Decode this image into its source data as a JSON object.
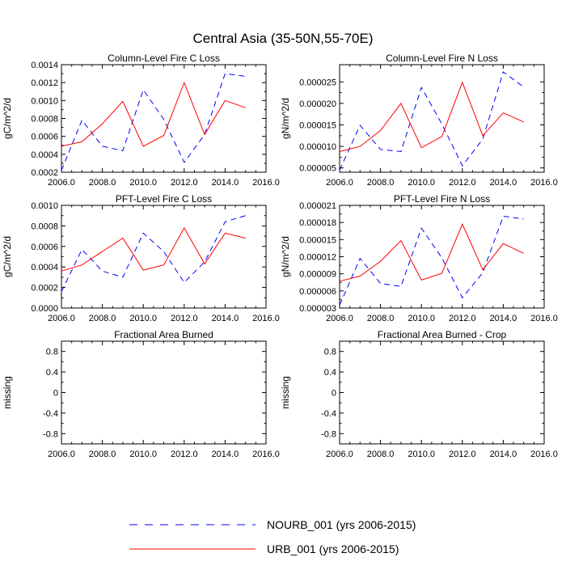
{
  "title": "Central Asia (35-50N,55-70E)",
  "series_styles": {
    "NOURB_001": {
      "color": "#0000ff",
      "dash": "dashed"
    },
    "URB_001": {
      "color": "#ff0000",
      "dash": "solid"
    }
  },
  "legend": {
    "placement": "bottom-center",
    "entries": [
      {
        "series": "NOURB_001",
        "label": "NOURB_001 (yrs 2006-2015)"
      },
      {
        "series": "URB_001",
        "label": "URB_001 (yrs 2006-2015)"
      }
    ]
  },
  "chart_data": [
    {
      "type": "line",
      "title": "Column-Level Fire C Loss",
      "xlabel": "",
      "ylabel": "gC/m^2/d",
      "xlim": [
        2006,
        2016
      ],
      "ylim": [
        0.0002,
        0.0014
      ],
      "xticks": [
        2006,
        2008,
        2010,
        2012,
        2014,
        2016
      ],
      "xtick_labels": [
        "2006.0",
        "2008.0",
        "2010.0",
        "2012.0",
        "2014.0",
        "2016.0"
      ],
      "yticks": [
        0.0002,
        0.0004,
        0.0006,
        0.0008,
        0.001,
        0.0012,
        0.0014
      ],
      "ytick_labels": [
        "0.0002",
        "0.0004",
        "0.0006",
        "0.0008",
        "0.0010",
        "0.0012",
        "0.0014"
      ],
      "x": [
        2006,
        2007,
        2008,
        2009,
        2010,
        2011,
        2012,
        2013,
        2014,
        2015
      ],
      "series": [
        {
          "name": "NOURB_001",
          "values": [
            0.00022,
            0.00078,
            0.00049,
            0.00044,
            0.00112,
            0.00079,
            0.00031,
            0.00062,
            0.0013,
            0.00127
          ]
        },
        {
          "name": "URB_001",
          "values": [
            0.00049,
            0.00054,
            0.00074,
            0.00099,
            0.00049,
            0.00061,
            0.0012,
            0.00062,
            0.001,
            0.00092
          ]
        }
      ]
    },
    {
      "type": "line",
      "title": "Column-Level Fire N Loss",
      "xlabel": "",
      "ylabel": "gN/m^2/d",
      "xlim": [
        2006,
        2016
      ],
      "ylim": [
        4e-06,
        2.9e-05
      ],
      "xticks": [
        2006,
        2008,
        2010,
        2012,
        2014,
        2016
      ],
      "xtick_labels": [
        "2006.0",
        "2008.0",
        "2010.0",
        "2012.0",
        "2014.0",
        "2016.0"
      ],
      "yticks": [
        5e-06,
        1e-05,
        1.5e-05,
        2e-05,
        2.5e-05
      ],
      "ytick_labels": [
        "0.000005",
        "0.000010",
        "0.000015",
        "0.000020",
        "0.000025"
      ],
      "x": [
        2006,
        2007,
        2008,
        2009,
        2010,
        2011,
        2012,
        2013,
        2014,
        2015
      ],
      "series": [
        {
          "name": "NOURB_001",
          "values": [
            4.5e-06,
            1.49e-05,
            9.3e-06,
            8.8e-06,
            2.37e-05,
            1.52e-05,
            5.5e-06,
            1.17e-05,
            2.73e-05,
            2.38e-05
          ]
        },
        {
          "name": "URB_001",
          "values": [
            8.8e-06,
            1e-05,
            1.37e-05,
            2e-05,
            9.7e-06,
            1.23e-05,
            2.49e-05,
            1.25e-05,
            1.78e-05,
            1.57e-05
          ]
        }
      ]
    },
    {
      "type": "line",
      "title": "PFT-Level Fire C Loss",
      "xlabel": "",
      "ylabel": "gC/m^2/d",
      "xlim": [
        2006,
        2016
      ],
      "ylim": [
        0,
        0.001
      ],
      "xticks": [
        2006,
        2008,
        2010,
        2012,
        2014,
        2016
      ],
      "xtick_labels": [
        "2006.0",
        "2008.0",
        "2010.0",
        "2012.0",
        "2014.0",
        "2016.0"
      ],
      "yticks": [
        0,
        0.0002,
        0.0004,
        0.0006,
        0.0008,
        0.001
      ],
      "ytick_labels": [
        "0.0000",
        "0.0002",
        "0.0004",
        "0.0006",
        "0.0008",
        "0.0010"
      ],
      "x": [
        2006,
        2007,
        2008,
        2009,
        2010,
        2011,
        2012,
        2013,
        2014,
        2015
      ],
      "series": [
        {
          "name": "NOURB_001",
          "values": [
            0.00016,
            0.00057,
            0.00036,
            0.0003,
            0.00073,
            0.00055,
            0.00025,
            0.00045,
            0.00084,
            0.0009
          ]
        },
        {
          "name": "URB_001",
          "values": [
            0.00036,
            0.00042,
            0.00055,
            0.00068,
            0.00037,
            0.00042,
            0.00078,
            0.00043,
            0.00073,
            0.00068
          ]
        }
      ]
    },
    {
      "type": "line",
      "title": "PFT-Level Fire N Loss",
      "xlabel": "",
      "ylabel": "gN/m^2/d",
      "xlim": [
        2006,
        2016
      ],
      "ylim": [
        3e-06,
        2.1e-05
      ],
      "xticks": [
        2006,
        2008,
        2010,
        2012,
        2014,
        2016
      ],
      "xtick_labels": [
        "2006.0",
        "2008.0",
        "2010.0",
        "2012.0",
        "2014.0",
        "2016.0"
      ],
      "yticks": [
        3e-06,
        6e-06,
        9e-06,
        1.2e-05,
        1.5e-05,
        1.8e-05,
        2.1e-05
      ],
      "ytick_labels": [
        "0.000003",
        "0.000006",
        "0.000009",
        "0.000012",
        "0.000015",
        "0.000018",
        "0.000021"
      ],
      "x": [
        2006,
        2007,
        2008,
        2009,
        2010,
        2011,
        2012,
        2013,
        2014,
        2015
      ],
      "series": [
        {
          "name": "NOURB_001",
          "values": [
            3.5e-06,
            1.17e-05,
            7.3e-06,
            6.8e-06,
            1.7e-05,
            1.18e-05,
            4.8e-06,
            9.2e-06,
            1.91e-05,
            1.86e-05
          ]
        },
        {
          "name": "URB_001",
          "values": [
            7.7e-06,
            8.6e-06,
            1.12e-05,
            1.48e-05,
            7.9e-06,
            9.1e-06,
            1.77e-05,
            9.7e-06,
            1.43e-05,
            1.26e-05
          ]
        }
      ]
    },
    {
      "type": "line",
      "title": "Fractional Area Burned",
      "xlabel": "",
      "ylabel": "missing",
      "xlim": [
        2006,
        2016
      ],
      "ylim": [
        -1,
        1
      ],
      "xticks": [
        2006,
        2008,
        2010,
        2012,
        2014,
        2016
      ],
      "xtick_labels": [
        "2006.0",
        "2008.0",
        "2010.0",
        "2012.0",
        "2014.0",
        "2016.0"
      ],
      "yticks": [
        -0.8,
        -0.4,
        0,
        0.4,
        0.8
      ],
      "ytick_labels": [
        "-0.8",
        "-0.4",
        "0",
        "0.4",
        "0.8"
      ],
      "minor_yticks": [
        -0.6,
        -0.2,
        0.2,
        0.6
      ],
      "x": [],
      "series": []
    },
    {
      "type": "line",
      "title": "Fractional Area Burned - Crop",
      "xlabel": "",
      "ylabel": "missing",
      "xlim": [
        2006,
        2016
      ],
      "ylim": [
        -1,
        1
      ],
      "xticks": [
        2006,
        2008,
        2010,
        2012,
        2014,
        2016
      ],
      "xtick_labels": [
        "2006.0",
        "2008.0",
        "2010.0",
        "2012.0",
        "2014.0",
        "2016.0"
      ],
      "yticks": [
        -0.8,
        -0.4,
        0,
        0.4,
        0.8
      ],
      "ytick_labels": [
        "-0.8",
        "-0.4",
        "0",
        "0.4",
        "0.8"
      ],
      "minor_yticks": [
        -0.6,
        -0.2,
        0.2,
        0.6
      ],
      "x": [],
      "series": []
    }
  ]
}
